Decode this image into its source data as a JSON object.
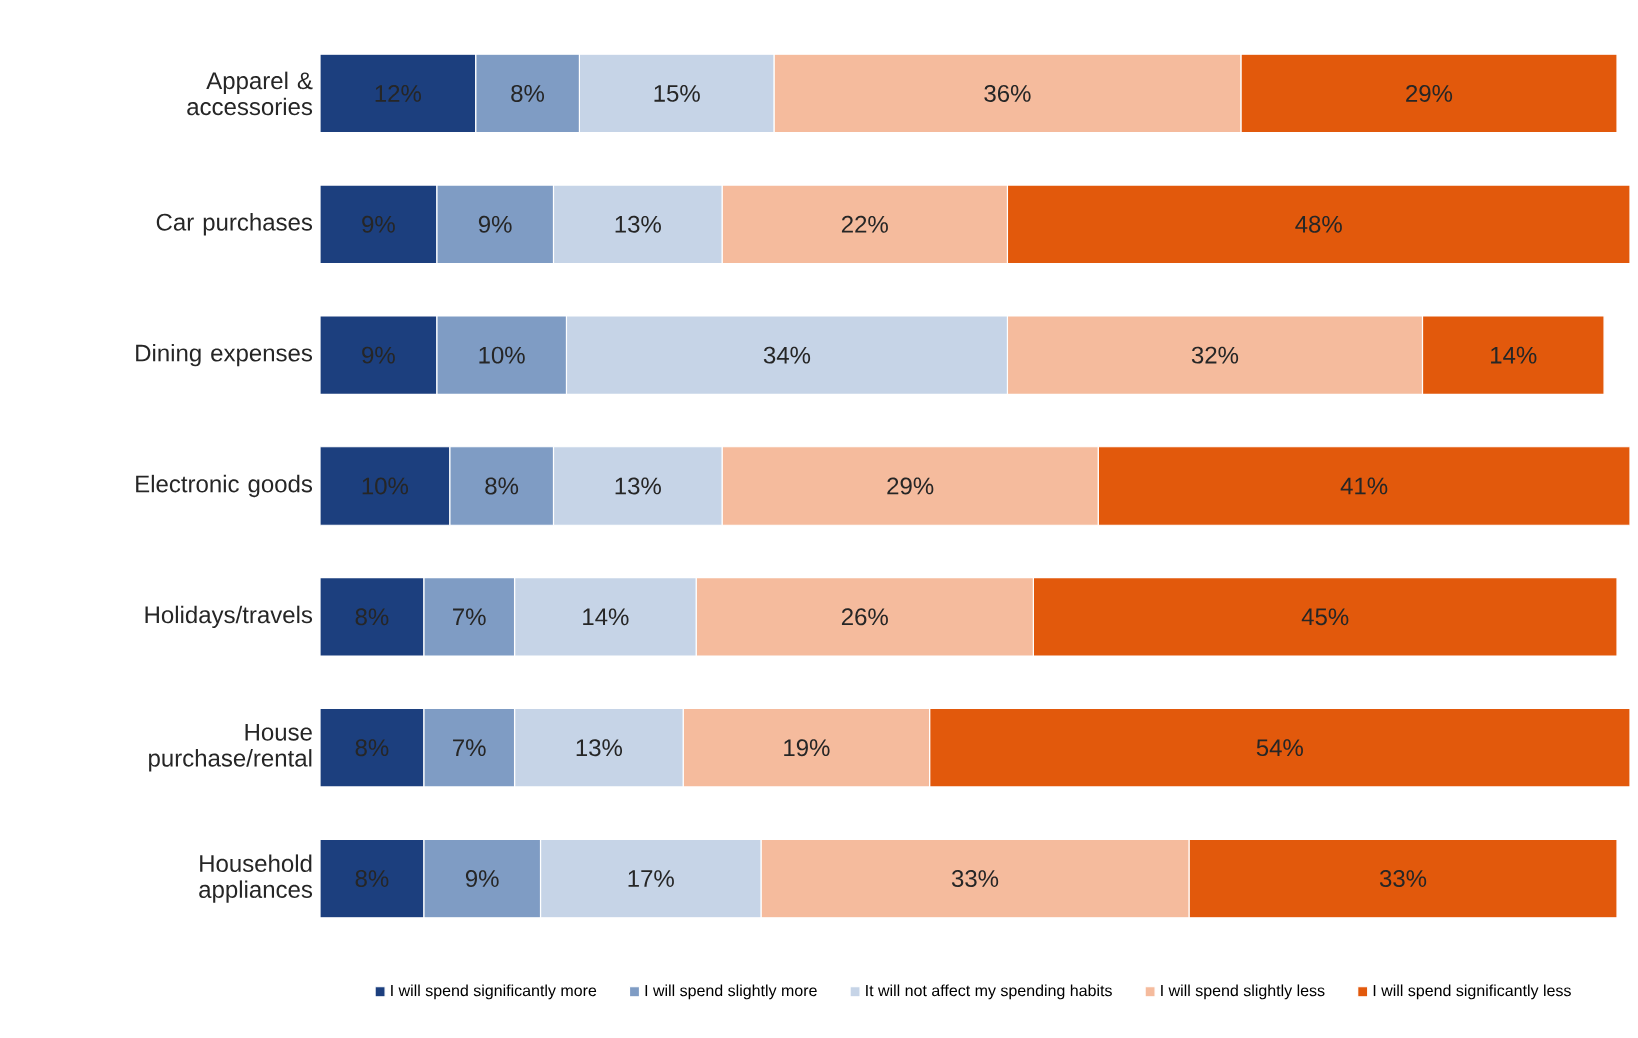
{
  "chart_data": {
    "type": "bar",
    "orientation": "horizontal",
    "stacked": true,
    "tick_labels": "y",
    "legend": "bottom",
    "categories": [
      "Apparel & accessories",
      "Car purchases",
      "Dining expenses",
      "Electronic goods",
      "Holidays/travels",
      "House purchase/rental",
      "Household appliances"
    ],
    "series": [
      {
        "name": "I will spend significantly more",
        "color": "#1c3f7e",
        "values": [
          12,
          9,
          9,
          10,
          8,
          8,
          8
        ],
        "value_labels": [
          "12%",
          "9%",
          "9%",
          "10%",
          "8%",
          "8%",
          "8%"
        ]
      },
      {
        "name": "I will spend slightly more",
        "color": "#7f9cc4",
        "values": [
          8,
          9,
          10,
          8,
          7,
          7,
          9
        ],
        "value_labels": [
          "8%",
          "9%",
          "10%",
          "8%",
          "7%",
          "7%",
          "9%"
        ]
      },
      {
        "name": "It will not affect my spending habits",
        "color": "#c6d4e7",
        "values": [
          15,
          13,
          34,
          13,
          14,
          13,
          17
        ],
        "value_labels": [
          "15%",
          "13%",
          "34%",
          "13%",
          "14%",
          "13%",
          "17%"
        ]
      },
      {
        "name": "I will spend slightly less",
        "color": "#f5bb9d",
        "values": [
          36,
          22,
          32,
          29,
          26,
          19,
          33
        ],
        "value_labels": [
          "36%",
          "22%",
          "32%",
          "29%",
          "26%",
          "19%",
          "33%"
        ]
      },
      {
        "name": "I will spend significantly less",
        "color": "#e2590c",
        "values": [
          29,
          48,
          14,
          41,
          45,
          54,
          33
        ],
        "value_labels": [
          "29%",
          "48%",
          "14%",
          "41%",
          "45%",
          "54%",
          "33%"
        ]
      }
    ]
  }
}
